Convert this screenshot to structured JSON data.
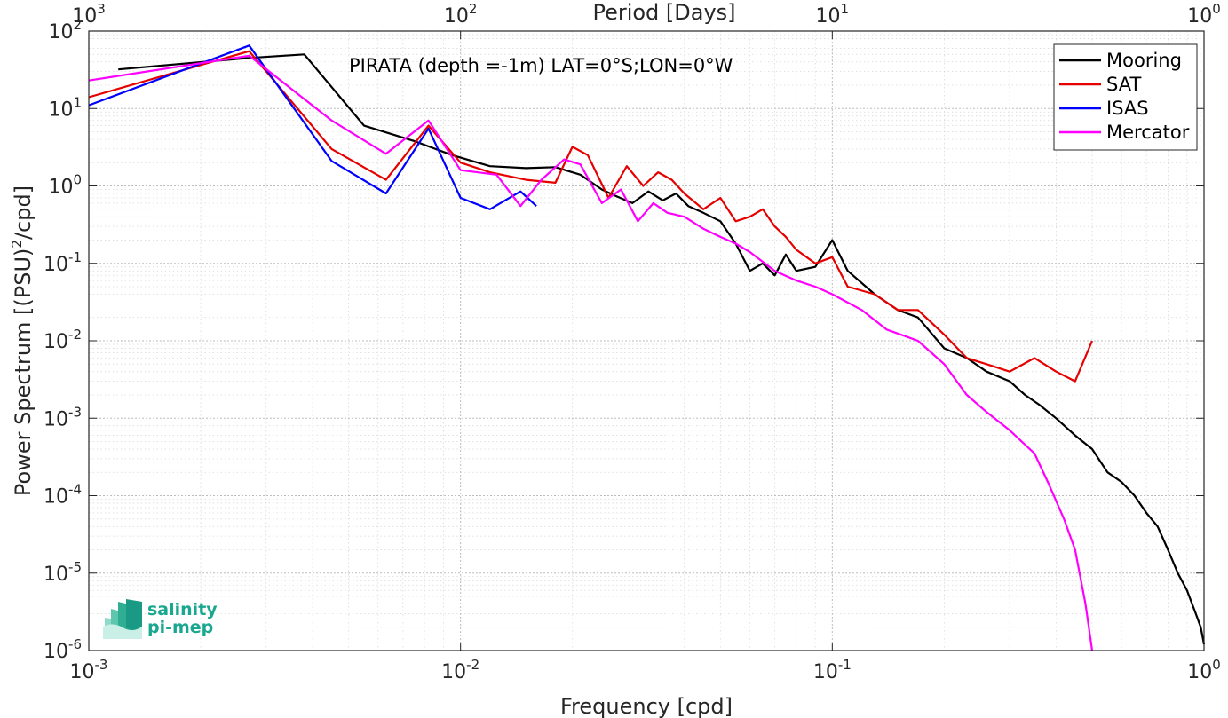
{
  "chart_data": {
    "type": "line",
    "title": "PIRATA (depth =-1m) LAT=0°S;LON=0°W",
    "xlabel": "Frequency [cpd]",
    "ylabel": "Power Spectrum [(PSU)^2/cpd]",
    "x2label": "Period [Days]",
    "xscale": "log",
    "yscale": "log",
    "xlim": [
      0.001,
      1
    ],
    "ylim": [
      1e-06,
      100
    ],
    "grid": true,
    "legend_position": "top-right",
    "x_ticks": [
      {
        "value": 0.001,
        "base": "10",
        "exp": "-3"
      },
      {
        "value": 0.01,
        "base": "10",
        "exp": "-2"
      },
      {
        "value": 0.1,
        "base": "10",
        "exp": "-1"
      },
      {
        "value": 1,
        "base": "10",
        "exp": "0"
      }
    ],
    "x2_ticks": [
      {
        "value": 0.001,
        "base": "10",
        "exp": "3"
      },
      {
        "value": 0.01,
        "base": "10",
        "exp": "2"
      },
      {
        "value": 0.1,
        "base": "10",
        "exp": "1"
      },
      {
        "value": 1,
        "base": "10",
        "exp": "0"
      }
    ],
    "y_ticks": [
      {
        "value": 100,
        "base": "10",
        "exp": "2"
      },
      {
        "value": 10,
        "base": "10",
        "exp": "1"
      },
      {
        "value": 1,
        "base": "10",
        "exp": "0"
      },
      {
        "value": 0.1,
        "base": "10",
        "exp": "-1"
      },
      {
        "value": 0.01,
        "base": "10",
        "exp": "-2"
      },
      {
        "value": 0.001,
        "base": "10",
        "exp": "-3"
      },
      {
        "value": 0.0001,
        "base": "10",
        "exp": "-4"
      },
      {
        "value": 1e-05,
        "base": "10",
        "exp": "-5"
      },
      {
        "value": 1e-06,
        "base": "10",
        "exp": "-6"
      }
    ],
    "series": [
      {
        "name": "Mooring",
        "color": "#000000",
        "x": [
          0.0012,
          0.0027,
          0.0038,
          0.0055,
          0.0075,
          0.0095,
          0.012,
          0.015,
          0.018,
          0.021,
          0.024,
          0.026,
          0.029,
          0.032,
          0.035,
          0.038,
          0.041,
          0.045,
          0.05,
          0.055,
          0.06,
          0.065,
          0.07,
          0.075,
          0.08,
          0.09,
          0.1,
          0.11,
          0.13,
          0.15,
          0.17,
          0.2,
          0.23,
          0.26,
          0.3,
          0.33,
          0.36,
          0.4,
          0.45,
          0.5,
          0.55,
          0.6,
          0.65,
          0.7,
          0.75,
          0.8,
          0.85,
          0.9,
          0.95,
          0.98,
          1.0
        ],
        "y": [
          32,
          45,
          50,
          6,
          3.8,
          2.5,
          1.8,
          1.7,
          1.75,
          1.4,
          0.9,
          0.75,
          0.6,
          0.85,
          0.65,
          0.8,
          0.55,
          0.45,
          0.35,
          0.18,
          0.08,
          0.1,
          0.07,
          0.13,
          0.08,
          0.09,
          0.2,
          0.08,
          0.04,
          0.025,
          0.02,
          0.008,
          0.006,
          0.004,
          0.003,
          0.002,
          0.0015,
          0.001,
          0.0006,
          0.0004,
          0.0002,
          0.00015,
          0.0001,
          6e-05,
          4e-05,
          2e-05,
          1e-05,
          6e-06,
          3e-06,
          2e-06,
          1.2e-06
        ]
      },
      {
        "name": "SAT",
        "color": "#e60000",
        "x": [
          0.001,
          0.0027,
          0.0045,
          0.0063,
          0.0082,
          0.01,
          0.012,
          0.015,
          0.018,
          0.02,
          0.022,
          0.025,
          0.028,
          0.031,
          0.034,
          0.037,
          0.04,
          0.045,
          0.05,
          0.055,
          0.06,
          0.065,
          0.07,
          0.075,
          0.08,
          0.09,
          0.1,
          0.11,
          0.13,
          0.15,
          0.17,
          0.2,
          0.23,
          0.26,
          0.3,
          0.35,
          0.4,
          0.45,
          0.5
        ],
        "y": [
          14,
          55,
          3,
          1.2,
          6,
          2,
          1.5,
          1.2,
          1.1,
          3.2,
          2.5,
          0.7,
          1.8,
          1.0,
          1.5,
          1.2,
          0.8,
          0.5,
          0.7,
          0.35,
          0.4,
          0.5,
          0.3,
          0.22,
          0.15,
          0.1,
          0.12,
          0.05,
          0.04,
          0.025,
          0.025,
          0.012,
          0.006,
          0.005,
          0.004,
          0.006,
          0.004,
          0.003,
          0.01
        ]
      },
      {
        "name": "ISAS",
        "color": "#0000ff",
        "x": [
          0.001,
          0.0027,
          0.0045,
          0.0063,
          0.0082,
          0.01,
          0.012,
          0.0145,
          0.016
        ],
        "y": [
          11,
          65,
          2.1,
          0.8,
          5.5,
          0.7,
          0.5,
          0.85,
          0.55
        ]
      },
      {
        "name": "Mercator",
        "color": "#ff00ff",
        "x": [
          0.001,
          0.0027,
          0.0045,
          0.0063,
          0.0082,
          0.01,
          0.0125,
          0.0145,
          0.0165,
          0.019,
          0.021,
          0.024,
          0.027,
          0.03,
          0.033,
          0.036,
          0.04,
          0.045,
          0.05,
          0.055,
          0.06,
          0.07,
          0.08,
          0.09,
          0.1,
          0.12,
          0.14,
          0.17,
          0.2,
          0.23,
          0.26,
          0.3,
          0.35,
          0.38,
          0.42,
          0.45,
          0.48,
          0.5
        ],
        "y": [
          23,
          48,
          7,
          2.6,
          7,
          1.6,
          1.4,
          0.55,
          1.2,
          2.2,
          1.9,
          0.6,
          0.9,
          0.35,
          0.6,
          0.45,
          0.4,
          0.28,
          0.22,
          0.18,
          0.14,
          0.08,
          0.06,
          0.05,
          0.04,
          0.025,
          0.014,
          0.01,
          0.005,
          0.002,
          0.0012,
          0.0007,
          0.00035,
          0.00015,
          5e-05,
          2e-05,
          4e-06,
          1e-06
        ]
      }
    ]
  },
  "logo": {
    "line1": "salinity",
    "line2": "pi-mep"
  }
}
